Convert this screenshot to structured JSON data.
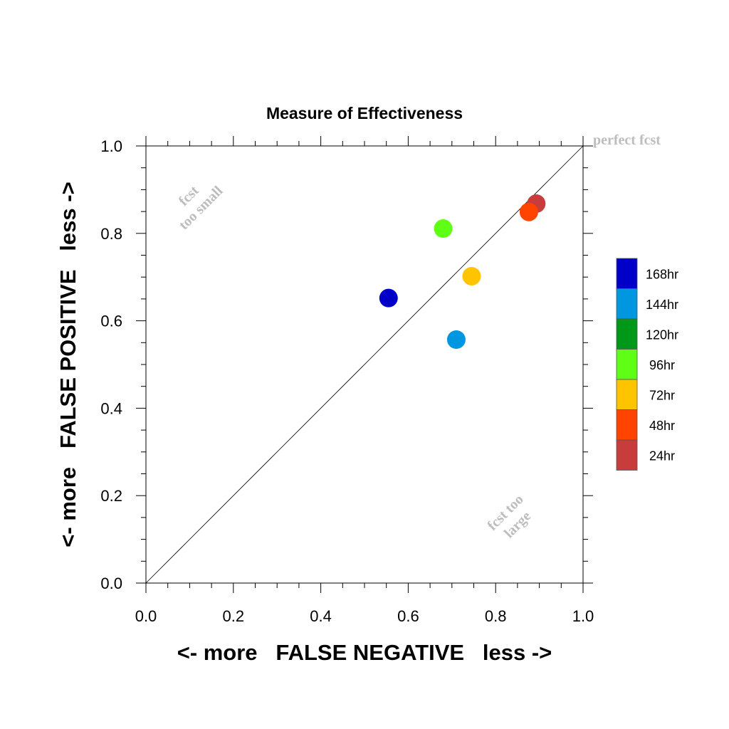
{
  "chart_data": {
    "type": "scatter",
    "title": "Measure of Effectiveness",
    "xlabel": "<- more   FALSE NEGATIVE   less ->",
    "ylabel": "<- more   FALSE POSITIVE   less ->",
    "xlim": [
      0.0,
      1.0
    ],
    "ylim": [
      0.0,
      1.0
    ],
    "x_ticks": [
      "0.0",
      "0.2",
      "0.4",
      "0.6",
      "0.8",
      "1.0"
    ],
    "y_ticks": [
      "0.0",
      "0.2",
      "0.4",
      "0.6",
      "0.8",
      "1.0"
    ],
    "grid": false,
    "reference_line": "diagonal y = x",
    "annotations": {
      "top_right": "perfect fcst",
      "upper_left_line1": "fcst",
      "upper_left_line2": "too small",
      "lower_right_line1": "fcst too",
      "lower_right_line2": "large"
    },
    "legend_position": "right",
    "legend": [
      {
        "label": "168hr",
        "color": "#0000c8"
      },
      {
        "label": "144hr",
        "color": "#0096e0"
      },
      {
        "label": "120hr",
        "color": "#009818"
      },
      {
        "label": "96hr",
        "color": "#5eff14"
      },
      {
        "label": "72hr",
        "color": "#ffc400"
      },
      {
        "label": "48hr",
        "color": "#ff4400"
      },
      {
        "label": "24hr",
        "color": "#c83c3c"
      }
    ],
    "series": [
      {
        "name": "168hr",
        "color": "#0000c8",
        "x": [
          0.555
        ],
        "y": [
          0.652
        ]
      },
      {
        "name": "144hr",
        "color": "#0096e0",
        "x": [
          0.71
        ],
        "y": [
          0.557
        ]
      },
      {
        "name": "96hr",
        "color": "#5eff14",
        "x": [
          0.68
        ],
        "y": [
          0.811
        ]
      },
      {
        "name": "72hr",
        "color": "#ffc400",
        "x": [
          0.745
        ],
        "y": [
          0.702
        ]
      },
      {
        "name": "24hr",
        "color": "#c83c3c",
        "x": [
          0.893
        ],
        "y": [
          0.868
        ]
      },
      {
        "name": "48hr",
        "color": "#ff4400",
        "x": [
          0.876
        ],
        "y": [
          0.849
        ]
      }
    ]
  }
}
